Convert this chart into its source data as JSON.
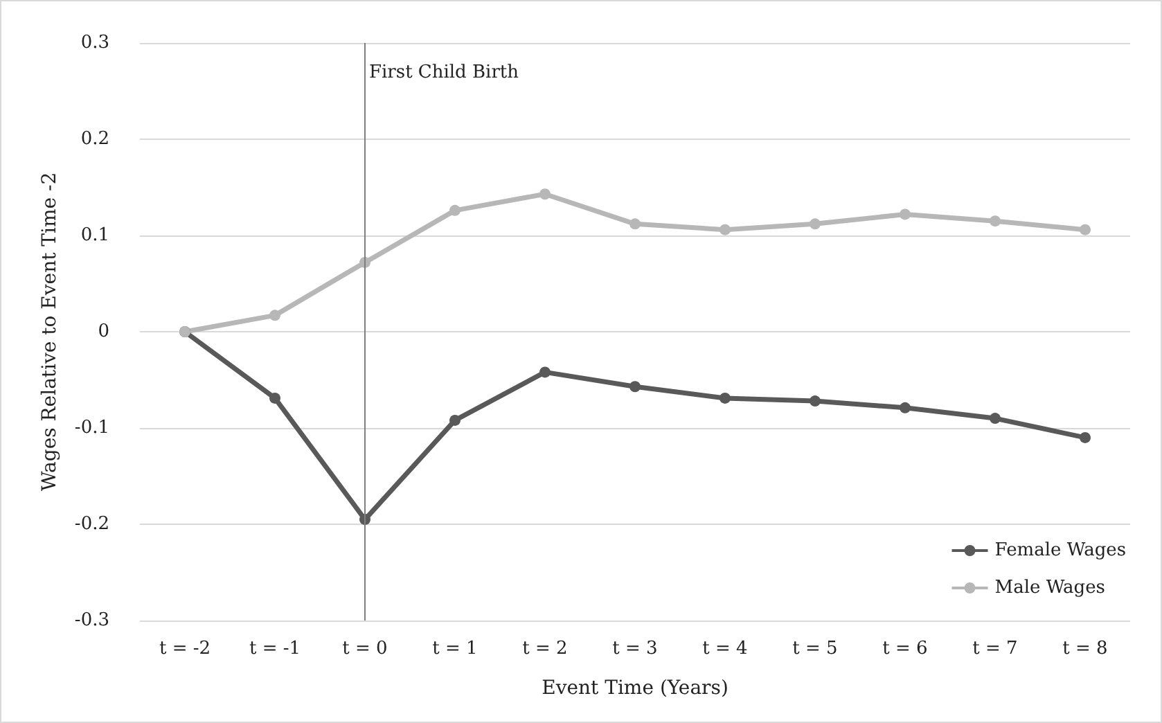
{
  "chart_data": {
    "type": "line",
    "xlabel": "Event Time (Years)",
    "ylabel": "Wages Relative to Event Time -2",
    "categories": [
      "t = -2",
      "t = -1",
      "t = 0",
      "t = 1",
      "t = 2",
      "t = 3",
      "t = 4",
      "t = 5",
      "t = 6",
      "t = 7",
      "t = 8"
    ],
    "series": [
      {
        "name": "Female Wages",
        "color": "#595959",
        "values": [
          0,
          -0.069,
          -0.195,
          -0.092,
          -0.042,
          -0.057,
          -0.069,
          -0.072,
          -0.079,
          -0.09,
          -0.11
        ]
      },
      {
        "name": "Male Wages",
        "color": "#b7b7b7",
        "values": [
          0,
          0.017,
          0.072,
          0.126,
          0.143,
          0.112,
          0.106,
          0.112,
          0.122,
          0.115,
          0.106
        ]
      }
    ],
    "ylim": [
      -0.3,
      0.3
    ],
    "yticks": [
      -0.3,
      -0.2,
      -0.1,
      0,
      0.1,
      0.2,
      0.3
    ],
    "ref_lines": [
      {
        "axis": "x",
        "value": "t = 0",
        "label": "First Child Birth",
        "color": "#7f7f7f"
      }
    ],
    "grid": "y",
    "legend": "bottom right",
    "marker": "circle",
    "line_style": "solid"
  }
}
